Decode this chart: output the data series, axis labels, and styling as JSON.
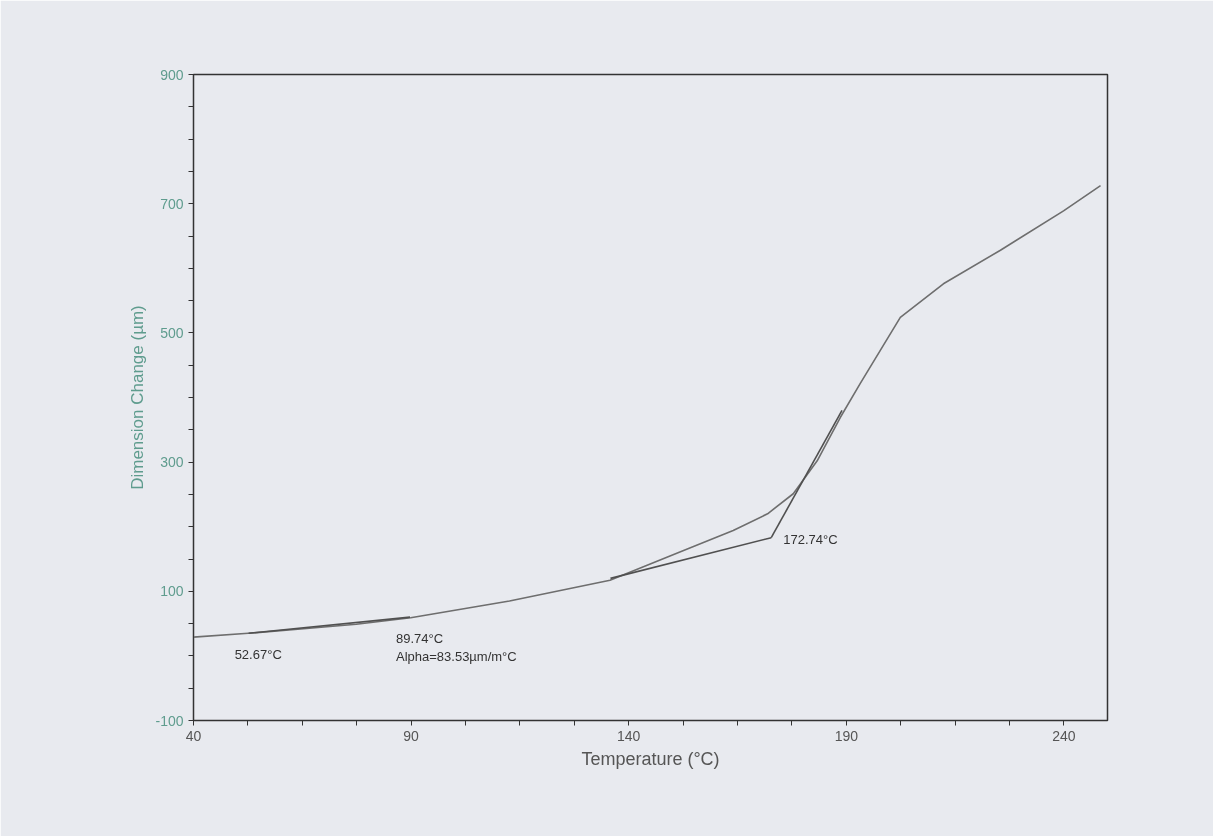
{
  "chart_data": {
    "type": "line",
    "xlabel": "Temperature (°C)",
    "ylabel": "Dimension Change (µm)",
    "xlim": [
      40,
      250
    ],
    "ylim": [
      -100,
      900
    ],
    "xticks": [
      40,
      {
        "value": 52.5,
        "label": null
      },
      {
        "value": 65,
        "label": null
      },
      {
        "value": 77.5,
        "label": null
      },
      90,
      {
        "value": 102.5,
        "label": null
      },
      {
        "value": 115,
        "label": null
      },
      {
        "value": 127.5,
        "label": null
      },
      140,
      {
        "value": 152.5,
        "label": null
      },
      {
        "value": 165,
        "label": null
      },
      {
        "value": 177.5,
        "label": null
      },
      190,
      {
        "value": 202.5,
        "label": null
      },
      {
        "value": 215,
        "label": null
      },
      {
        "value": 227.5,
        "label": null
      },
      240
    ],
    "yticks": [
      -100,
      {
        "value": -50,
        "label": null
      },
      {
        "value": 0,
        "label": null
      },
      {
        "value": 50,
        "label": null
      },
      100,
      {
        "value": 150,
        "label": null
      },
      {
        "value": 200,
        "label": null
      },
      {
        "value": 250,
        "label": null
      },
      300,
      {
        "value": 350,
        "label": null
      },
      {
        "value": 400,
        "label": null
      },
      {
        "value": 450,
        "label": null
      },
      500,
      {
        "value": 550,
        "label": null
      },
      {
        "value": 600,
        "label": null
      },
      {
        "value": 650,
        "label": null
      },
      700,
      {
        "value": 750,
        "label": null
      },
      {
        "value": 800,
        "label": null
      },
      {
        "value": 850,
        "label": null
      },
      900
    ],
    "grid": false,
    "marker": "none",
    "line_style": "solid",
    "series": [
      {
        "color": "#6e6e6e",
        "x": [
          40,
          52.6,
          65.3,
          77.4,
          89.9,
          112.6,
          135.7,
          152.6,
          164,
          171.9,
          177.8,
          183.3,
          188.6,
          193.2,
          197.8,
          202.4,
          212.3,
          225.4,
          239.9,
          248.4
        ],
        "values": [
          29,
          35,
          42,
          49,
          59,
          85,
          117,
          163,
          194,
          220,
          251,
          302,
          369,
          422,
          473,
          524,
          576,
          628,
          689,
          728
        ]
      },
      {
        "color": "#505050",
        "x": [
          52.67,
          89.74
        ],
        "values": [
          35,
          60
        ]
      },
      {
        "color": "#505050",
        "x": [
          135.8,
          172.74
        ],
        "values": [
          120,
          183
        ]
      },
      {
        "color": "#505050",
        "x": [
          172.74,
          189
        ],
        "values": [
          183,
          380
        ]
      }
    ],
    "annotations": [
      {
        "text": "52.67°C",
        "x": 52.67,
        "y": 35
      },
      {
        "text": "89.74°C",
        "x": 89.74,
        "y": 60
      },
      {
        "text": "Alpha=83.53µm/m°C",
        "x": 89.74,
        "y": 60
      },
      {
        "text": "172.74°C",
        "x": 172.74,
        "y": 183
      }
    ]
  }
}
